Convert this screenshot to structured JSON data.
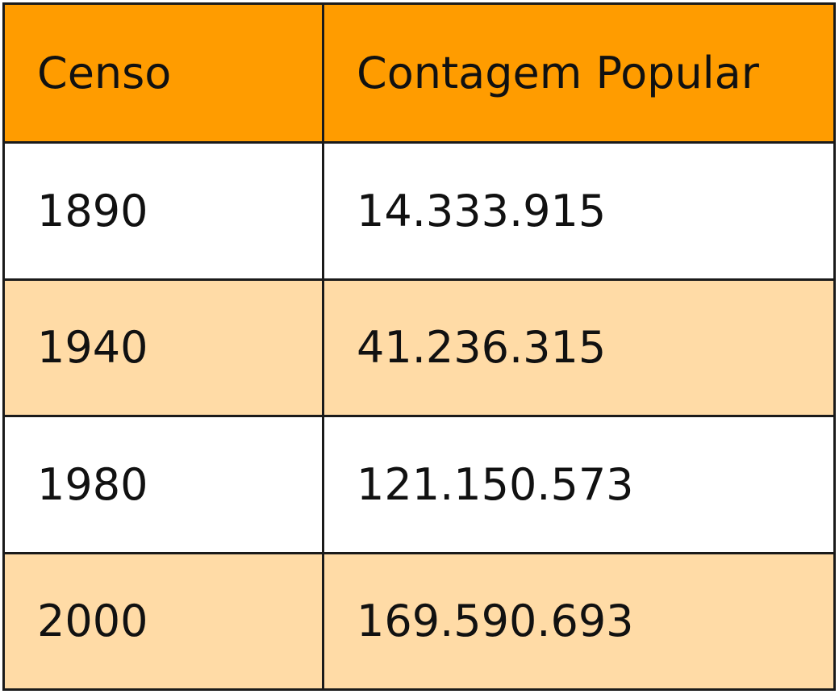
{
  "table": {
    "header": [
      "Censo",
      "Contagem Popular"
    ],
    "rows": [
      [
        "1890",
        "14.333.915"
      ],
      [
        "1940",
        "41.236.315"
      ],
      [
        "1980",
        "121.150.573"
      ],
      [
        "2000",
        "169.590.693"
      ]
    ]
  }
}
